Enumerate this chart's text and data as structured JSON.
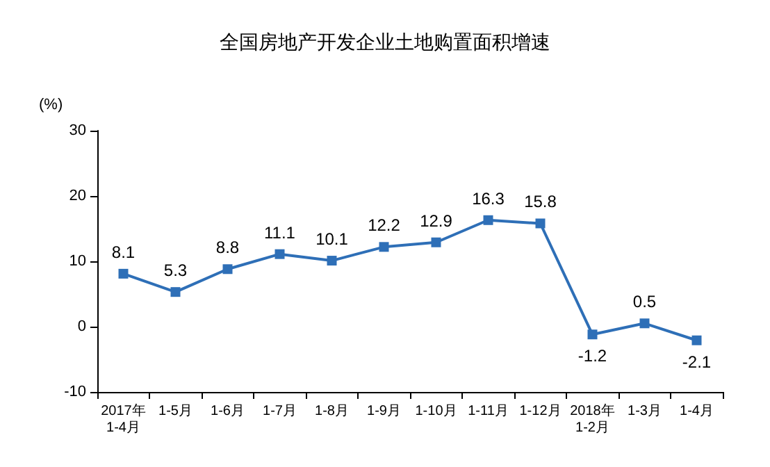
{
  "chart_data": {
    "type": "line",
    "title": "全国房地产开发企业土地购置面积增速",
    "ylabel": "(%)",
    "categories": [
      "2017年\n1-4月",
      "1-5月",
      "1-6月",
      "1-7月",
      "1-8月",
      "1-9月",
      "1-10月",
      "1-11月",
      "1-12月",
      "2018年\n1-2月",
      "1-3月",
      "1-4月"
    ],
    "series": [
      {
        "color": "#2e6fb7",
        "values": [
          8.1,
          5.3,
          8.8,
          11.1,
          10.1,
          12.2,
          12.9,
          16.3,
          15.8,
          -1.2,
          0.5,
          -2.1
        ]
      }
    ],
    "ylim": [
      -10,
      30
    ],
    "yticks": [
      -10,
      0,
      10,
      20,
      30
    ],
    "grid": false,
    "marker": "square",
    "line_style": "solid",
    "data_labels": true
  }
}
